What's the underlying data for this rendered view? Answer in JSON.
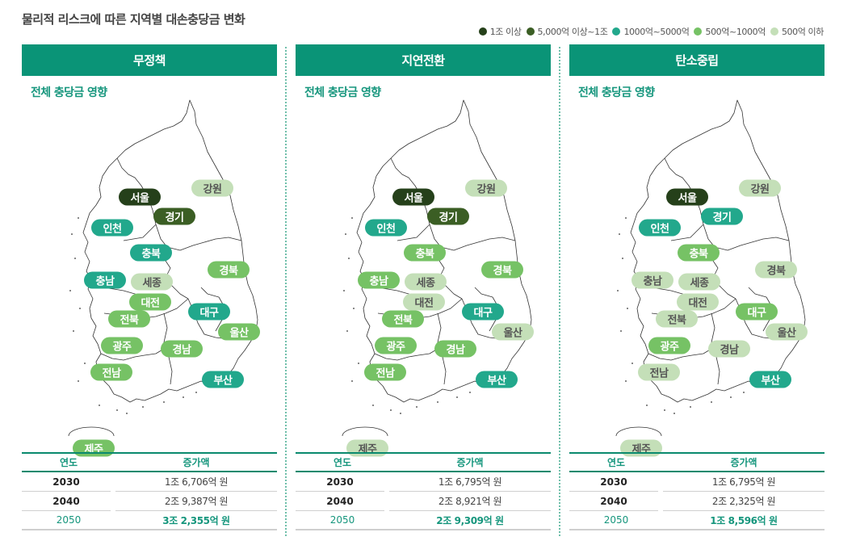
{
  "title": "물리적 리스크에 따른 지역별 대손충당금 변화",
  "legend": [
    {
      "label": "1조 이상",
      "color": "#25401a",
      "level": 1
    },
    {
      "label": "5,000억 이상~1조",
      "color": "#3b5e24",
      "level": 2
    },
    {
      "label": "1000억~5000억",
      "color": "#22a88c",
      "level": 3
    },
    {
      "label": "500억~1000억",
      "color": "#76c265",
      "level": 4
    },
    {
      "label": "500억 이하",
      "color": "#c4dfb8",
      "level": 5
    }
  ],
  "level_styles": {
    "1": {
      "bg": "#25401a",
      "fg": "#ffffff"
    },
    "2": {
      "bg": "#3b5e24",
      "fg": "#ffffff"
    },
    "3": {
      "bg": "#22a88c",
      "fg": "#ffffff"
    },
    "4": {
      "bg": "#76c265",
      "fg": "#ffffff"
    },
    "5": {
      "bg": "#c4dfb8",
      "fg": "#555555"
    }
  },
  "region_positions": {
    "서울": [
      146,
      124
    ],
    "경기": [
      189,
      148
    ],
    "강원": [
      236,
      113
    ],
    "인천": [
      112,
      162
    ],
    "충북": [
      160,
      193
    ],
    "경북": [
      256,
      214
    ],
    "충남": [
      103,
      227
    ],
    "세종": [
      161,
      229
    ],
    "대전": [
      159,
      254
    ],
    "대구": [
      232,
      266
    ],
    "전북": [
      133,
      275
    ],
    "울산": [
      269,
      291
    ],
    "광주": [
      124,
      308
    ],
    "경남": [
      198,
      312
    ],
    "전남": [
      111,
      341
    ],
    "부산": [
      249,
      350
    ],
    "제주": [
      89,
      435
    ]
  },
  "panels": [
    {
      "title": "무정책",
      "subtitle": "전체 충당금 영향",
      "regions": {
        "서울": 1,
        "경기": 2,
        "강원": 5,
        "인천": 3,
        "충북": 3,
        "경북": 4,
        "충남": 3,
        "세종": 5,
        "대전": 4,
        "대구": 3,
        "전북": 4,
        "울산": 4,
        "광주": 4,
        "경남": 4,
        "전남": 4,
        "부산": 3,
        "제주": 4
      },
      "table": {
        "headers": [
          "연도",
          "증가액"
        ],
        "rows": [
          {
            "year": "2030",
            "amount": "1조 6,706억 원"
          },
          {
            "year": "2040",
            "amount": "2조 9,387억 원"
          },
          {
            "year": "2050",
            "amount": "3조 2,355억 원"
          }
        ]
      }
    },
    {
      "title": "지연전환",
      "subtitle": "전체 충당금 영향",
      "regions": {
        "서울": 1,
        "경기": 2,
        "강원": 5,
        "인천": 3,
        "충북": 4,
        "경북": 4,
        "충남": 4,
        "세종": 5,
        "대전": 5,
        "대구": 3,
        "전북": 4,
        "울산": 5,
        "광주": 4,
        "경남": 4,
        "전남": 4,
        "부산": 3,
        "제주": 5
      },
      "table": {
        "headers": [
          "연도",
          "증가액"
        ],
        "rows": [
          {
            "year": "2030",
            "amount": "1조 6,795억 원"
          },
          {
            "year": "2040",
            "amount": "2조 8,921억 원"
          },
          {
            "year": "2050",
            "amount": "2조 9,309억 원"
          }
        ]
      }
    },
    {
      "title": "탄소중립",
      "subtitle": "전체 충당금 영향",
      "regions": {
        "서울": 1,
        "경기": 3,
        "강원": 5,
        "인천": 3,
        "충북": 4,
        "경북": 5,
        "충남": 5,
        "세종": 5,
        "대전": 5,
        "대구": 4,
        "전북": 5,
        "울산": 5,
        "광주": 4,
        "경남": 5,
        "전남": 5,
        "부산": 3,
        "제주": 5
      },
      "table": {
        "headers": [
          "연도",
          "증가액"
        ],
        "rows": [
          {
            "year": "2030",
            "amount": "1조 6,795억 원"
          },
          {
            "year": "2040",
            "amount": "2조 2,325억 원"
          },
          {
            "year": "2050",
            "amount": "1조 8,596억 원"
          }
        ]
      }
    }
  ]
}
